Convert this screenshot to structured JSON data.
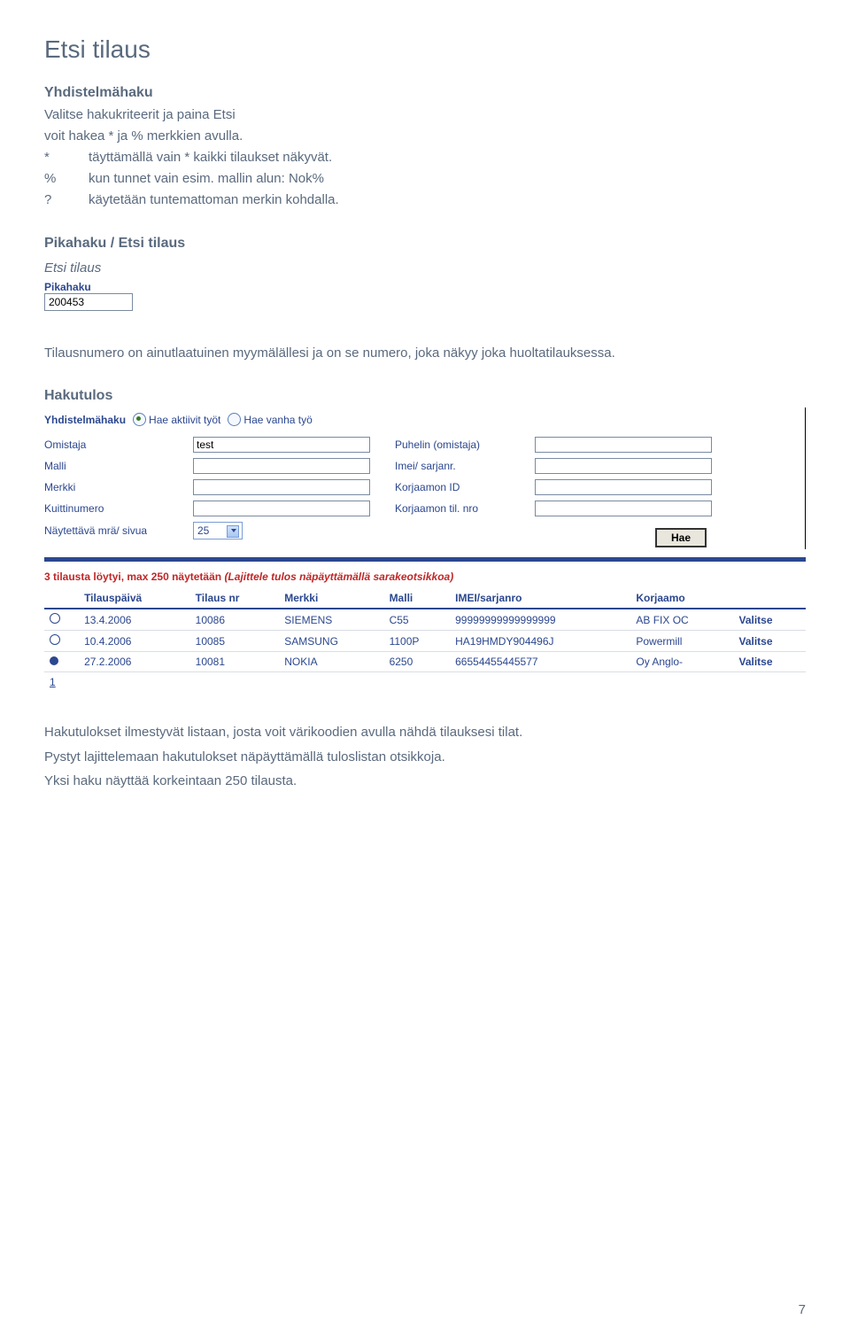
{
  "page": {
    "title": "Etsi tilaus",
    "number": "7"
  },
  "intro": {
    "heading": "Yhdistelmähaku",
    "line1": "Valitse hakukriteerit ja paina Etsi",
    "line2": "voit hakea * ja % merkkien avulla.",
    "rows": [
      {
        "sym": "*",
        "desc": "täyttämällä vain * kaikki tilaukset näkyvät."
      },
      {
        "sym": "%",
        "desc": "kun tunnet vain esim. mallin alun: Nok%"
      },
      {
        "sym": "?",
        "desc": "käytetään tuntemattoman merkin kohdalla."
      }
    ]
  },
  "pikahaku_section": {
    "title": "Pikahaku / Etsi tilaus",
    "sub_label": "Etsi tilaus",
    "box_label": "Pikahaku",
    "box_value": "200453",
    "para": "Tilausnumero on ainutlaatuinen myymälällesi ja on se numero, joka näkyy joka huoltatilauksessa."
  },
  "hakutulos": {
    "title": "Hakutulos",
    "form": {
      "header_label": "Yhdistelmähaku",
      "radio1": "Hae aktiivit työt",
      "radio2": "Hae vanha työ",
      "fields": {
        "omistaja_label": "Omistaja",
        "omistaja_value": "test",
        "puhelin_label": "Puhelin (omistaja)",
        "puhelin_value": "",
        "malli_label": "Malli",
        "malli_value": "",
        "imei_label": "Imei/ sarjanr.",
        "imei_value": "",
        "merkki_label": "Merkki",
        "merkki_value": "",
        "korjaamo_id_label": "Korjaamon ID",
        "korjaamo_id_value": "",
        "kuitti_label": "Kuittinumero",
        "kuitti_value": "",
        "korjaamo_til_label": "Korjaamon til. nro",
        "korjaamo_til_value": "",
        "mra_label": "Näytettävä mrä/ sivua",
        "mra_value": "25"
      },
      "hae_button": "Hae"
    },
    "results": {
      "count_text": "3 tilausta löytyi, max 250 näytetään ",
      "sort_hint": "(Lajittele tulos näpäyttämällä sarakeotsikkoa)",
      "columns": [
        "Tilauspäivä",
        "Tilaus nr",
        "Merkki",
        "Malli",
        "IMEI/sarjanro",
        "Korjaamo",
        ""
      ],
      "rows": [
        {
          "status": "open",
          "date": "13.4.2006",
          "nr": "10086",
          "merkki": "SIEMENS",
          "malli": "C55",
          "imei": "99999999999999999",
          "korjaamo": "AB FIX OC",
          "action": "Valitse"
        },
        {
          "status": "open",
          "date": "10.4.2006",
          "nr": "10085",
          "merkki": "SAMSUNG",
          "malli": "1100P",
          "imei": "HA19HMDY904496J",
          "korjaamo": "Powermill",
          "action": "Valitse"
        },
        {
          "status": "closed",
          "date": "27.2.2006",
          "nr": "10081",
          "merkki": "NOKIA",
          "malli": "6250",
          "imei": "66554455445577",
          "korjaamo": "Oy Anglo-",
          "action": "Valitse"
        }
      ],
      "pager": "1"
    },
    "para1": "Hakutulokset ilmestyvät listaan, josta voit värikoodien avulla nähdä tilauksesi tilat.",
    "para2": "Pystyt lajittelemaan hakutulokset näpäyttämällä tuloslistan otsikkoja.",
    "para3": "Yksi haku näyttää korkeintaan 250 tilausta."
  }
}
